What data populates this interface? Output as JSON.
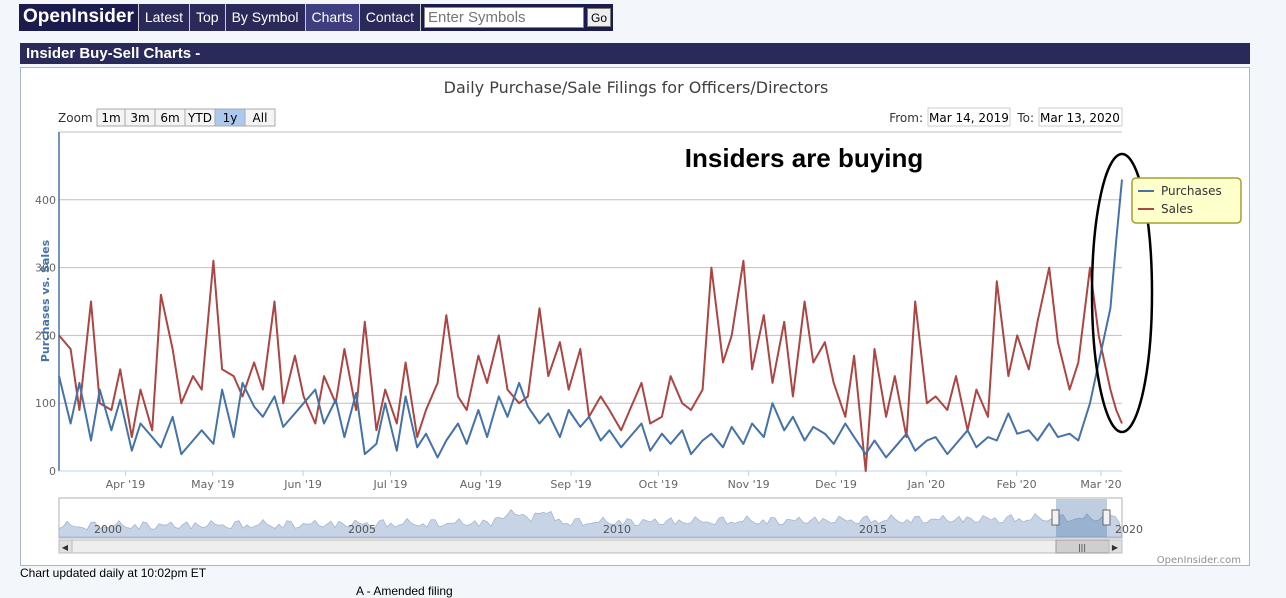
{
  "nav": {
    "brand": "OpenInsider",
    "items": [
      "Latest",
      "Top",
      "By Symbol",
      "Charts",
      "Contact"
    ],
    "active": "Charts",
    "search_placeholder": "Enter Symbols",
    "go_label": "Go"
  },
  "section_title": "Insider Buy-Sell Charts -",
  "chart": {
    "zoom_label": "Zoom",
    "zoom_buttons": [
      "1m",
      "3m",
      "6m",
      "YTD",
      "1y",
      "All"
    ],
    "zoom_active": "1y",
    "from_label": "From:",
    "from_value": "Mar 14, 2019",
    "to_label": "To:",
    "to_value": "Mar 13, 2020",
    "annotation": "Insiders are buying",
    "credit": "OpenInsider.com",
    "navigator_years": [
      "2000",
      "2005",
      "2010",
      "2015",
      "2020"
    ],
    "colors": {
      "purchases": "#4572a7",
      "sales": "#aa4643",
      "grid": "#c0c0c0",
      "navigator": "#c6d4e6"
    }
  },
  "chart_data": {
    "type": "line",
    "title": "Daily Purchase/Sale Filings for Officers/Directors",
    "ylabel": "Purchases vs. Sales",
    "ylim": [
      0,
      500
    ],
    "yticks": [
      0,
      100,
      200,
      300,
      400
    ],
    "xlim": [
      "2019-03-14",
      "2020-03-13"
    ],
    "xticks": [
      "Apr '19",
      "May '19",
      "Jun '19",
      "Jul '19",
      "Aug '19",
      "Sep '19",
      "Oct '19",
      "Nov '19",
      "Dec '19",
      "Jan '20",
      "Feb '20",
      "Mar '20"
    ],
    "legend": {
      "position": "top-right"
    },
    "series": [
      {
        "name": "Purchases",
        "x": [
          "2019-03-14",
          "2019-03-18",
          "2019-03-21",
          "2019-03-25",
          "2019-03-28",
          "2019-04-01",
          "2019-04-04",
          "2019-04-08",
          "2019-04-11",
          "2019-04-15",
          "2019-04-18",
          "2019-04-22",
          "2019-04-25",
          "2019-04-29",
          "2019-05-02",
          "2019-05-06",
          "2019-05-09",
          "2019-05-13",
          "2019-05-16",
          "2019-05-20",
          "2019-05-23",
          "2019-05-27",
          "2019-05-30",
          "2019-06-03",
          "2019-06-06",
          "2019-06-10",
          "2019-06-13",
          "2019-06-17",
          "2019-06-20",
          "2019-06-24",
          "2019-06-27",
          "2019-07-01",
          "2019-07-04",
          "2019-07-08",
          "2019-07-11",
          "2019-07-15",
          "2019-07-18",
          "2019-07-22",
          "2019-07-25",
          "2019-07-29",
          "2019-08-01",
          "2019-08-05",
          "2019-08-08",
          "2019-08-12",
          "2019-08-15",
          "2019-08-19",
          "2019-08-22",
          "2019-08-26",
          "2019-08-29",
          "2019-09-02",
          "2019-09-05",
          "2019-09-09",
          "2019-09-12",
          "2019-09-16",
          "2019-09-19",
          "2019-09-23",
          "2019-09-26",
          "2019-09-30",
          "2019-10-03",
          "2019-10-07",
          "2019-10-10",
          "2019-10-14",
          "2019-10-17",
          "2019-10-21",
          "2019-10-24",
          "2019-10-28",
          "2019-10-31",
          "2019-11-04",
          "2019-11-07",
          "2019-11-11",
          "2019-11-14",
          "2019-11-18",
          "2019-11-21",
          "2019-11-25",
          "2019-11-28",
          "2019-12-02",
          "2019-12-05",
          "2019-12-09",
          "2019-12-12",
          "2019-12-16",
          "2019-12-19",
          "2019-12-23",
          "2019-12-26",
          "2019-12-30",
          "2020-01-02",
          "2020-01-06",
          "2020-01-09",
          "2020-01-13",
          "2020-01-16",
          "2020-01-20",
          "2020-01-23",
          "2020-01-27",
          "2020-01-30",
          "2020-02-03",
          "2020-02-06",
          "2020-02-10",
          "2020-02-13",
          "2020-02-17",
          "2020-02-20",
          "2020-02-24",
          "2020-02-27",
          "2020-03-02",
          "2020-03-05",
          "2020-03-09",
          "2020-03-11",
          "2020-03-13"
        ],
        "values": [
          140,
          70,
          130,
          45,
          120,
          60,
          105,
          30,
          70,
          50,
          35,
          80,
          25,
          45,
          60,
          40,
          120,
          50,
          130,
          95,
          80,
          110,
          65,
          85,
          100,
          120,
          70,
          105,
          50,
          115,
          25,
          40,
          100,
          30,
          110,
          35,
          55,
          20,
          45,
          70,
          40,
          90,
          50,
          110,
          80,
          130,
          95,
          70,
          85,
          50,
          90,
          65,
          80,
          45,
          60,
          35,
          50,
          70,
          30,
          55,
          40,
          60,
          25,
          45,
          55,
          35,
          65,
          40,
          70,
          50,
          100,
          60,
          80,
          45,
          65,
          55,
          40,
          70,
          50,
          25,
          45,
          20,
          35,
          55,
          30,
          45,
          50,
          25,
          40,
          60,
          35,
          50,
          45,
          85,
          55,
          60,
          45,
          70,
          50,
          55,
          45,
          100,
          160,
          240,
          340,
          430
        ]
      },
      {
        "name": "Sales",
        "x": [
          "2019-03-14",
          "2019-03-18",
          "2019-03-21",
          "2019-03-25",
          "2019-03-28",
          "2019-04-01",
          "2019-04-04",
          "2019-04-08",
          "2019-04-11",
          "2019-04-15",
          "2019-04-18",
          "2019-04-22",
          "2019-04-25",
          "2019-04-29",
          "2019-05-02",
          "2019-05-06",
          "2019-05-09",
          "2019-05-13",
          "2019-05-16",
          "2019-05-20",
          "2019-05-23",
          "2019-05-27",
          "2019-05-30",
          "2019-06-03",
          "2019-06-06",
          "2019-06-10",
          "2019-06-13",
          "2019-06-17",
          "2019-06-20",
          "2019-06-24",
          "2019-06-27",
          "2019-07-01",
          "2019-07-04",
          "2019-07-08",
          "2019-07-11",
          "2019-07-15",
          "2019-07-18",
          "2019-07-22",
          "2019-07-25",
          "2019-07-29",
          "2019-08-01",
          "2019-08-05",
          "2019-08-08",
          "2019-08-12",
          "2019-08-15",
          "2019-08-19",
          "2019-08-22",
          "2019-08-26",
          "2019-08-29",
          "2019-09-02",
          "2019-09-05",
          "2019-09-09",
          "2019-09-12",
          "2019-09-16",
          "2019-09-19",
          "2019-09-23",
          "2019-09-26",
          "2019-09-30",
          "2019-10-03",
          "2019-10-07",
          "2019-10-10",
          "2019-10-14",
          "2019-10-17",
          "2019-10-21",
          "2019-10-24",
          "2019-10-28",
          "2019-10-31",
          "2019-11-04",
          "2019-11-07",
          "2019-11-11",
          "2019-11-14",
          "2019-11-18",
          "2019-11-21",
          "2019-11-25",
          "2019-11-28",
          "2019-12-02",
          "2019-12-05",
          "2019-12-09",
          "2019-12-12",
          "2019-12-16",
          "2019-12-19",
          "2019-12-23",
          "2019-12-26",
          "2019-12-30",
          "2020-01-02",
          "2020-01-06",
          "2020-01-09",
          "2020-01-13",
          "2020-01-16",
          "2020-01-20",
          "2020-01-23",
          "2020-01-27",
          "2020-01-30",
          "2020-02-03",
          "2020-02-06",
          "2020-02-10",
          "2020-02-13",
          "2020-02-17",
          "2020-02-20",
          "2020-02-24",
          "2020-02-27",
          "2020-03-02",
          "2020-03-05",
          "2020-03-09",
          "2020-03-11",
          "2020-03-13"
        ],
        "values": [
          200,
          180,
          90,
          250,
          100,
          90,
          150,
          50,
          120,
          60,
          260,
          180,
          100,
          140,
          120,
          310,
          150,
          140,
          110,
          160,
          120,
          250,
          100,
          170,
          110,
          70,
          140,
          100,
          180,
          90,
          220,
          60,
          120,
          70,
          160,
          50,
          90,
          130,
          230,
          110,
          90,
          170,
          130,
          200,
          120,
          100,
          110,
          240,
          140,
          190,
          120,
          180,
          80,
          110,
          90,
          60,
          90,
          130,
          70,
          80,
          140,
          100,
          90,
          120,
          300,
          160,
          200,
          310,
          150,
          230,
          130,
          220,
          110,
          250,
          160,
          190,
          130,
          80,
          170,
          0,
          180,
          80,
          140,
          50,
          250,
          100,
          110,
          90,
          140,
          60,
          120,
          80,
          280,
          140,
          200,
          150,
          220,
          300,
          190,
          120,
          160,
          300,
          200,
          120,
          90,
          70
        ]
      }
    ]
  }
}
